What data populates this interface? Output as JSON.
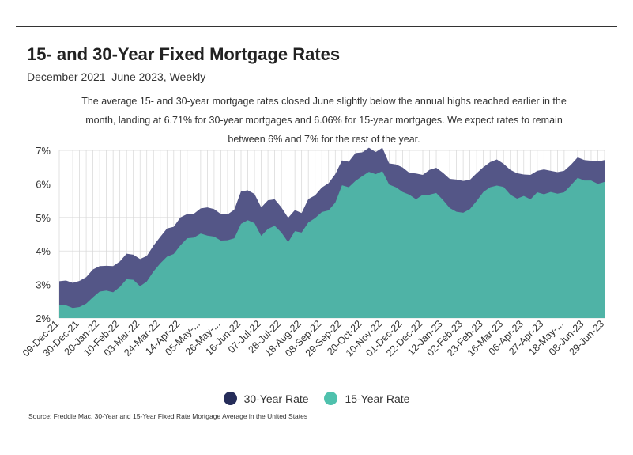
{
  "title": "15- and 30-Year Fixed Mortgage Rates",
  "subtitle": "December 2021–June 2023, Weekly",
  "description": "The average 15- and 30-year mortgage rates closed June slightly below the annual highs reached earlier in the month, landing at 6.71% for 30-year mortgages and 6.06% for 15-year mortgages. We expect rates to remain between 6% and 7% for the rest of the year.",
  "source": "Source:  Freddie Mac, 30-Year  and 15-Year Fixed Rate Mortgage Average in the United States",
  "colors": {
    "rate30": "#545687",
    "rate15": "#4fb3a6",
    "swatch30": "#262d5a",
    "swatch15": "#4fc1ad",
    "grid": "#d6d6d6"
  },
  "chart_data": {
    "type": "area",
    "title": "15- and 30-Year Fixed Mortgage Rates",
    "ylim": [
      2,
      7
    ],
    "yticks": [
      "7%",
      "6%",
      "5%",
      "4%",
      "3%",
      "2%"
    ],
    "ytick_values": [
      7,
      6,
      5,
      4,
      3,
      2
    ],
    "x_tick_labels": [
      "09-Dec-21",
      "30-Dec-21",
      "20-Jan-22",
      "10-Feb-22",
      "03-Mar-22",
      "24-Mar-22",
      "14-Apr-22",
      "05-May-...",
      "26-May-...",
      "16-Jun-22",
      "07-Jul-22",
      "28-Jul-22",
      "18-Aug-22",
      "08-Sep-22",
      "29-Sep-22",
      "20-Oct-22",
      "10-Nov-22",
      "01-Dec-22",
      "22-Dec-22",
      "12-Jan-23",
      "02-Feb-23",
      "23-Feb-23",
      "16-Mar-23",
      "06-Apr-23",
      "27-Apr-23",
      "18-May-...",
      "08-Jun-23",
      "29-Jun-23"
    ],
    "series": [
      {
        "name": "30-Year Rate",
        "values": [
          3.1,
          3.12,
          3.05,
          3.11,
          3.22,
          3.45,
          3.55,
          3.56,
          3.55,
          3.69,
          3.92,
          3.89,
          3.76,
          3.85,
          4.16,
          4.42,
          4.67,
          4.72,
          5.0,
          5.1,
          5.11,
          5.27,
          5.3,
          5.25,
          5.1,
          5.09,
          5.23,
          5.78,
          5.81,
          5.7,
          5.3,
          5.51,
          5.54,
          5.3,
          4.99,
          5.22,
          5.13,
          5.55,
          5.66,
          5.89,
          6.02,
          6.29,
          6.7,
          6.66,
          6.92,
          6.94,
          7.08,
          6.95,
          7.08,
          6.61,
          6.58,
          6.49,
          6.33,
          6.31,
          6.27,
          6.42,
          6.48,
          6.33,
          6.15,
          6.13,
          6.09,
          6.12,
          6.32,
          6.5,
          6.65,
          6.73,
          6.6,
          6.42,
          6.32,
          6.28,
          6.27,
          6.39,
          6.43,
          6.39,
          6.35,
          6.39,
          6.57,
          6.79,
          6.71,
          6.69,
          6.67,
          6.71
        ]
      },
      {
        "name": "15-Year Rate",
        "values": [
          2.38,
          2.38,
          2.3,
          2.33,
          2.43,
          2.62,
          2.79,
          2.82,
          2.77,
          2.93,
          3.16,
          3.14,
          2.95,
          3.09,
          3.39,
          3.63,
          3.83,
          3.91,
          4.17,
          4.38,
          4.4,
          4.52,
          4.46,
          4.43,
          4.31,
          4.32,
          4.38,
          4.81,
          4.92,
          4.83,
          4.45,
          4.66,
          4.75,
          4.55,
          4.26,
          4.59,
          4.55,
          4.85,
          4.98,
          5.16,
          5.21,
          5.44,
          5.96,
          5.9,
          6.09,
          6.23,
          6.36,
          6.29,
          6.38,
          5.98,
          5.9,
          5.76,
          5.68,
          5.54,
          5.68,
          5.68,
          5.73,
          5.52,
          5.28,
          5.17,
          5.14,
          5.25,
          5.49,
          5.76,
          5.9,
          5.95,
          5.91,
          5.68,
          5.56,
          5.64,
          5.54,
          5.75,
          5.69,
          5.76,
          5.71,
          5.75,
          5.96,
          6.18,
          6.1,
          6.1,
          6.0,
          6.06
        ]
      }
    ],
    "legend": [
      "30-Year Rate",
      "15-Year Rate"
    ]
  }
}
